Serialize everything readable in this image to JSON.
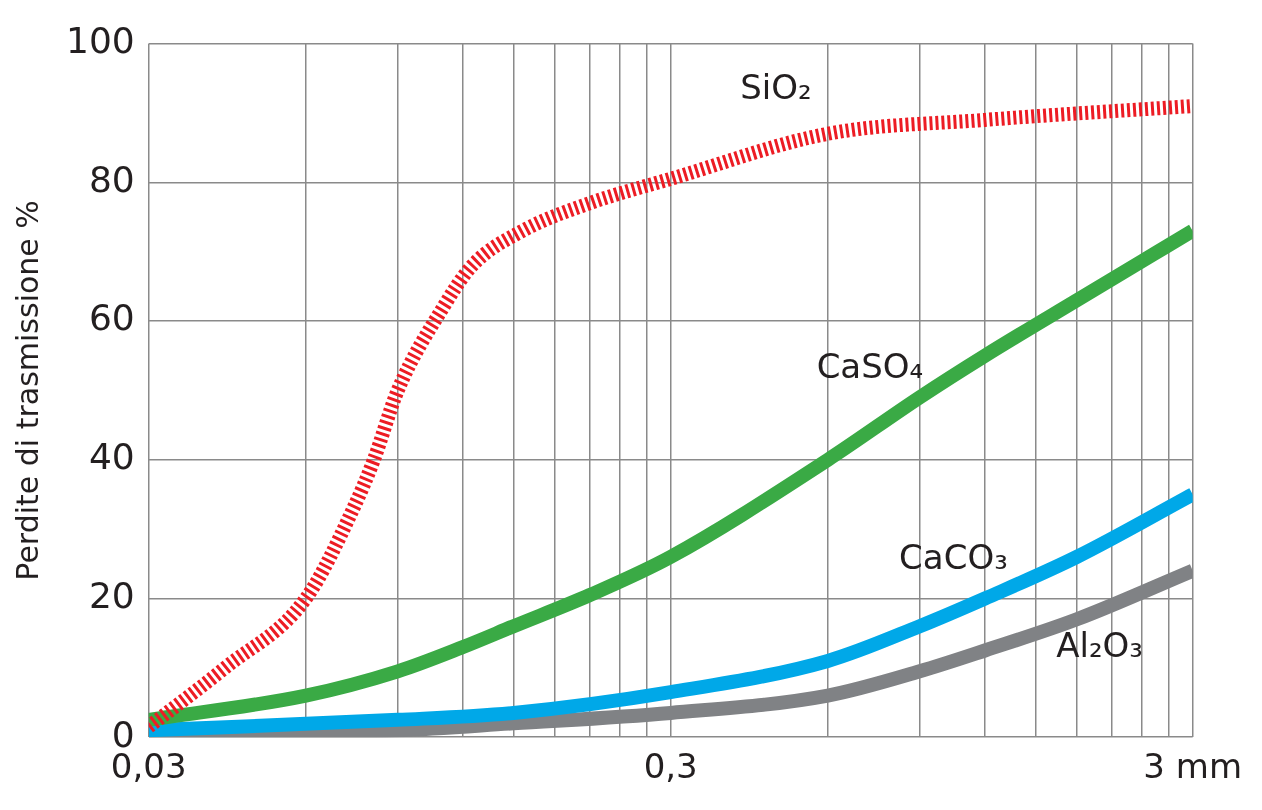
{
  "chart_data": {
    "type": "line",
    "ylabel": "Perdite di trasmissione %",
    "log": "x",
    "xlim": [
      0.03,
      3
    ],
    "xticks": [
      {
        "value": 0.03,
        "label": "0,03"
      },
      {
        "value": 0.06,
        "label": null
      },
      {
        "value": 0.09,
        "label": null
      },
      {
        "value": 0.12,
        "label": null
      },
      {
        "value": 0.15,
        "label": null
      },
      {
        "value": 0.18,
        "label": null
      },
      {
        "value": 0.21,
        "label": null
      },
      {
        "value": 0.24,
        "label": null
      },
      {
        "value": 0.27,
        "label": null
      },
      {
        "value": 0.3,
        "label": "0,3"
      },
      {
        "value": 0.6,
        "label": null
      },
      {
        "value": 0.9,
        "label": null
      },
      {
        "value": 1.2,
        "label": null
      },
      {
        "value": 1.5,
        "label": null
      },
      {
        "value": 1.8,
        "label": null
      },
      {
        "value": 2.1,
        "label": null
      },
      {
        "value": 2.4,
        "label": null
      },
      {
        "value": 2.7,
        "label": null
      },
      {
        "value": 3,
        "label": "3 mm"
      }
    ],
    "ylim": [
      0,
      100
    ],
    "yticks": [
      0,
      20,
      40,
      60,
      80,
      100
    ],
    "grid": true,
    "legend": false,
    "marker": "none",
    "series": [
      {
        "name": "SiO₂",
        "color": "#ed1c24",
        "line_style": "dotted",
        "x": [
          0.03,
          0.042,
          0.06,
          0.074,
          0.081,
          0.09,
          0.11,
          0.125,
          0.156,
          0.21,
          0.3,
          0.6,
          1.2,
          3
        ],
        "values": [
          1.5,
          10,
          20,
          33,
          40,
          50,
          62,
          68,
          73,
          77,
          80.5,
          87,
          89,
          91
        ]
      },
      {
        "name": "CaSO₄",
        "color": "#3aaa45",
        "line_style": "solid",
        "x": [
          0.03,
          0.06,
          0.09,
          0.12,
          0.15,
          0.21,
          0.3,
          0.6,
          0.9,
          1.2,
          1.8,
          3
        ],
        "values": [
          2.5,
          6,
          9.5,
          13,
          16,
          20.5,
          26,
          40,
          49,
          55,
          63,
          73
        ]
      },
      {
        "name": "CaCO₃",
        "color": "#00a8e8",
        "line_style": "solid",
        "x": [
          0.03,
          0.09,
          0.15,
          0.3,
          0.6,
          0.9,
          1.2,
          1.8,
          3
        ],
        "values": [
          1,
          2.5,
          3.5,
          6.5,
          11,
          16,
          20,
          26,
          35
        ]
      },
      {
        "name": "Al₂O₃",
        "color": "#808285",
        "line_style": "solid",
        "x": [
          0.03,
          0.09,
          0.15,
          0.3,
          0.6,
          0.9,
          1.2,
          1.8,
          3
        ],
        "values": [
          0.5,
          1,
          2,
          3.5,
          6,
          9.5,
          12.5,
          17,
          24
        ]
      }
    ]
  }
}
